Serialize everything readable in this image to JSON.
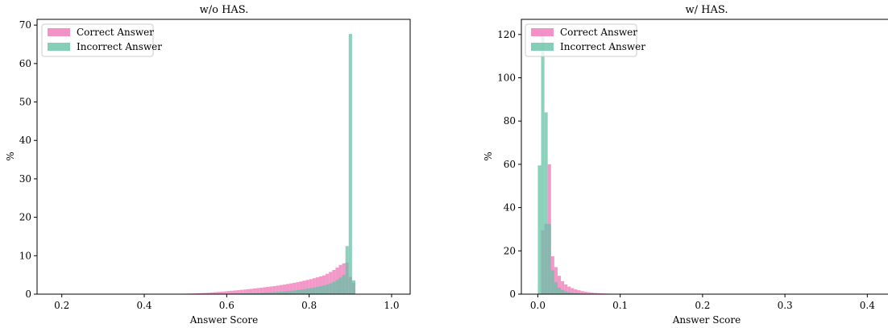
{
  "colors": {
    "correct": "#ef77b8",
    "incorrect": "#66c2a5",
    "overlap": "#6b8f8e"
  },
  "chart_data": [
    {
      "type": "histogram",
      "title": "w/o HAS.",
      "xlabel": "Answer Score",
      "ylabel": "%",
      "xlim": [
        0.14,
        1.045
      ],
      "ylim": [
        0,
        71.5
      ],
      "xticks": [
        0.2,
        0.4,
        0.6,
        0.8,
        1.0
      ],
      "xtick_labels": [
        "0.2",
        "0.4",
        "0.6",
        "0.8",
        "1.0"
      ],
      "yticks": [
        0,
        10,
        20,
        30,
        40,
        50,
        60,
        70
      ],
      "ytick_labels": [
        "0",
        "10",
        "20",
        "30",
        "40",
        "50",
        "60",
        "70"
      ],
      "legend_position": "upper-left",
      "series": [
        {
          "name": "Correct Answer",
          "bin_start": 0.16,
          "bin_width": 0.008,
          "values": [
            0.05,
            0.05,
            0.05,
            0.05,
            0.05,
            0.05,
            0.05,
            0.05,
            0.05,
            0.05,
            0.05,
            0.05,
            0.05,
            0.05,
            0.05,
            0.05,
            0.05,
            0.05,
            0.05,
            0.05,
            0.05,
            0.05,
            0.05,
            0.05,
            0.05,
            0.05,
            0.05,
            0.05,
            0.05,
            0.05,
            0.05,
            0.05,
            0.05,
            0.05,
            0.05,
            0.05,
            0.05,
            0.06,
            0.06,
            0.07,
            0.08,
            0.1,
            0.12,
            0.14,
            0.17,
            0.2,
            0.24,
            0.28,
            0.33,
            0.39,
            0.45,
            0.51,
            0.58,
            0.65,
            0.72,
            0.8,
            0.88,
            0.96,
            1.04,
            1.12,
            1.2,
            1.29,
            1.38,
            1.47,
            1.57,
            1.67,
            1.78,
            1.89,
            2.0,
            2.11,
            2.23,
            2.36,
            2.5,
            2.65,
            2.8,
            2.96,
            3.12,
            3.3,
            3.5,
            3.7,
            3.92,
            4.14,
            4.38,
            4.62,
            4.9,
            5.3,
            5.8,
            6.3,
            6.9,
            7.6,
            8.0,
            8.2,
            4.5,
            3.0,
            0
          ]
        },
        {
          "name": "Incorrect Answer",
          "bin_start": 0.16,
          "bin_width": 0.008,
          "values": [
            0.02,
            0.02,
            0.02,
            0.02,
            0.02,
            0.02,
            0.02,
            0.02,
            0.02,
            0.02,
            0.02,
            0.02,
            0.02,
            0.02,
            0.02,
            0.02,
            0.02,
            0.02,
            0.02,
            0.02,
            0.02,
            0.02,
            0.02,
            0.02,
            0.02,
            0.02,
            0.02,
            0.02,
            0.02,
            0.02,
            0.02,
            0.02,
            0.02,
            0.02,
            0.02,
            0.02,
            0.02,
            0.02,
            0.02,
            0.02,
            0.02,
            0.02,
            0.02,
            0.03,
            0.03,
            0.03,
            0.04,
            0.04,
            0.05,
            0.05,
            0.06,
            0.07,
            0.08,
            0.09,
            0.1,
            0.11,
            0.12,
            0.14,
            0.16,
            0.18,
            0.2,
            0.22,
            0.25,
            0.28,
            0.31,
            0.35,
            0.39,
            0.43,
            0.48,
            0.53,
            0.59,
            0.65,
            0.72,
            0.8,
            0.88,
            0.97,
            1.07,
            1.18,
            1.3,
            1.43,
            1.57,
            1.72,
            1.88,
            2.05,
            2.25,
            2.5,
            2.8,
            3.2,
            3.7,
            4.3,
            5.0,
            12.5,
            67.7,
            3.6,
            0
          ]
        }
      ]
    },
    {
      "type": "histogram",
      "title": "w/ HAS.",
      "xlabel": "Answer Score",
      "ylabel": "%",
      "xlim": [
        -0.02,
        0.43
      ],
      "ylim": [
        0,
        127
      ],
      "xticks": [
        0.0,
        0.1,
        0.2,
        0.3,
        0.4
      ],
      "xtick_labels": [
        "0.0",
        "0.1",
        "0.2",
        "0.3",
        "0.4"
      ],
      "yticks": [
        0,
        20,
        40,
        60,
        80,
        100,
        120
      ],
      "ytick_labels": [
        "0",
        "20",
        "40",
        "60",
        "80",
        "100",
        "120"
      ],
      "legend_position": "upper-left",
      "series": [
        {
          "name": "Correct Answer",
          "bin_start": 0.0,
          "bin_width": 0.004,
          "values": [
            0,
            29.5,
            32.5,
            60.0,
            17.5,
            12.5,
            8.5,
            6.0,
            4.5,
            3.5,
            2.8,
            2.2,
            1.8,
            1.4,
            1.1,
            0.9,
            0.7,
            0.55,
            0.45,
            0.35,
            0.28,
            0.22,
            0.18,
            0.14,
            0.11,
            0.09,
            0.07,
            0.06,
            0.05,
            0.04,
            0.03,
            0.03,
            0.02,
            0.02,
            0.02,
            0.02,
            0.02,
            0.02,
            0.02,
            0.02,
            0.02,
            0.02,
            0.02,
            0.02,
            0.02,
            0.02,
            0.02,
            0.02,
            0.02,
            0.02,
            0.02,
            0.02,
            0.02,
            0.02,
            0.02,
            0.02,
            0.02,
            0.02,
            0.02,
            0.02,
            0.02,
            0.02,
            0.02,
            0.02,
            0.02,
            0.02,
            0.02,
            0.02,
            0.02,
            0.02,
            0.02,
            0.02,
            0.02,
            0.02,
            0.02,
            0.02,
            0.02,
            0.02,
            0.02,
            0.02,
            0.02,
            0.02,
            0.02,
            0.02,
            0.02,
            0.02,
            0.02,
            0.02,
            0.02,
            0.02,
            0.02,
            0.02,
            0.02,
            0.02,
            0.02,
            0.02,
            0.02,
            0.02,
            0.02,
            0.02,
            0.02,
            0.02,
            0.02,
            0.02,
            0.02
          ]
        },
        {
          "name": "Incorrect Answer",
          "bin_start": 0.0,
          "bin_width": 0.004,
          "values": [
            59.5,
            120.5,
            84.0,
            32.5,
            11.0,
            5.5,
            3.0,
            2.0,
            1.3,
            0.9,
            0.6,
            0.4,
            0.3,
            0.2,
            0.15,
            0.1,
            0.08,
            0.06,
            0.05,
            0.04,
            0.03,
            0.03,
            0.02,
            0.02,
            0.02,
            0.02,
            0.02,
            0.02,
            0.02,
            0.02,
            0.02,
            0.02,
            0.02,
            0.02,
            0.02,
            0.02,
            0.02,
            0.02,
            0.02,
            0.02,
            0.02,
            0.02,
            0.02,
            0.02,
            0.02,
            0.02,
            0.02,
            0.02,
            0.02,
            0.02,
            0.02,
            0.02,
            0.02,
            0.02,
            0.02,
            0.02,
            0.02,
            0.02,
            0.02,
            0.02,
            0.02,
            0.02,
            0.02,
            0.02,
            0.02,
            0.02,
            0.02,
            0.02,
            0.02,
            0.02,
            0.02,
            0.02,
            0.02,
            0.02,
            0.02,
            0.02,
            0.02,
            0.02,
            0.02,
            0.02,
            0.02,
            0.02,
            0.02,
            0.02,
            0.02,
            0.02,
            0.02,
            0.02,
            0.02,
            0.02,
            0.02,
            0.02,
            0.02,
            0.02,
            0.02,
            0.02,
            0.02,
            0.02,
            0.02,
            0.02,
            0.02,
            0.02,
            0.02,
            0.02,
            0.02
          ]
        }
      ]
    }
  ]
}
